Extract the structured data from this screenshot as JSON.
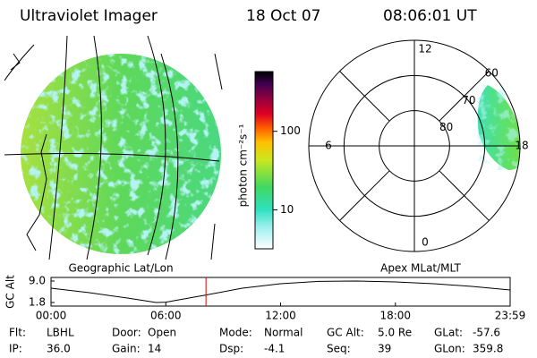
{
  "header": {
    "instrument": "Ultraviolet Imager",
    "date": "18 Oct 07",
    "time": "08:06:01 UT"
  },
  "map_label": "Geographic Lat/Lon",
  "polar": {
    "label": "Apex MLat/MLT",
    "lat_lim": [
      90,
      60
    ],
    "lat_rings": [
      80,
      70,
      60
    ],
    "mlt_ticks": [
      12,
      18,
      6,
      0
    ]
  },
  "colorbar": {
    "label": "photon cm⁻²s⁻¹",
    "log": true,
    "lim": [
      3.2,
      575
    ],
    "ticks": [
      10,
      100
    ]
  },
  "chart_data": {
    "type": "line",
    "ylabel": "GC Alt",
    "color": "#000000",
    "x": [
      0,
      2,
      4,
      5.5,
      6,
      8,
      10,
      12,
      14,
      16,
      18,
      20,
      22,
      24
    ],
    "values": [
      6.6,
      5.1,
      3.3,
      1.8,
      1.9,
      4.2,
      6.6,
      8.1,
      8.9,
      9.0,
      8.7,
      8.1,
      7.2,
      6.0
    ],
    "xlim": [
      0,
      24
    ],
    "ylim": [
      1.8,
      9.0
    ],
    "yticks": [
      {
        "value": 1.8,
        "label": "1.8"
      },
      {
        "value": 9.0,
        "label": "9.0"
      }
    ],
    "xticks": [
      {
        "value": 0,
        "label": "00:00"
      },
      {
        "value": 6,
        "label": "06:00"
      },
      {
        "value": 12,
        "label": "12:00"
      },
      {
        "value": 18,
        "label": "18:00"
      },
      {
        "value": 24,
        "label": "23:59"
      }
    ],
    "current_time": 8.1,
    "current_color": "#e00000"
  },
  "fields": [
    [
      {
        "label": "Flt:",
        "value": "LBHL"
      },
      {
        "label": "Door:",
        "value": "Open"
      },
      {
        "label": "Mode:",
        "value": "Normal"
      },
      {
        "label": "GC Alt:",
        "value": "5.0 Re"
      },
      {
        "label": "GLat:",
        "value": "-57.6"
      }
    ],
    [
      {
        "label": "IP:",
        "value": "36.0"
      },
      {
        "label": "Gain:",
        "value": "14"
      },
      {
        "label": "Dsp:",
        "value": "-4.1"
      },
      {
        "label": "Seq:",
        "value": "39"
      },
      {
        "label": "GLon:",
        "value": "359.8"
      }
    ]
  ]
}
